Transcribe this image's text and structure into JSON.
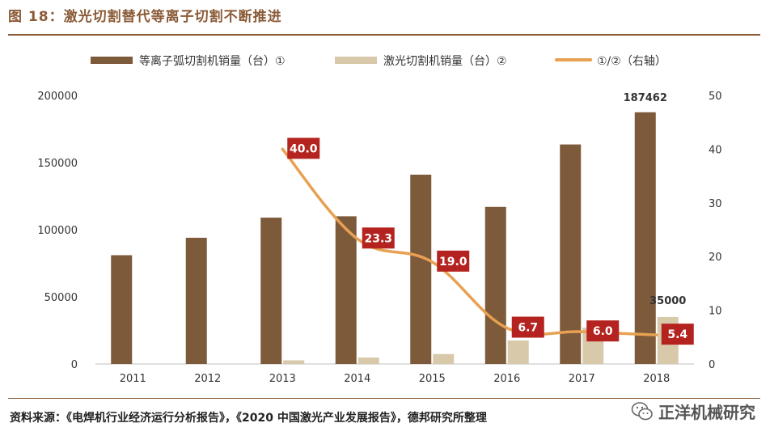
{
  "header": {
    "title": "图 18：激光切割替代等离子切割不断推进"
  },
  "footer": {
    "source": "资料来源：《电焊机行业经济运行分析报告》，《2020 中国激光产业发展报告》，德邦研究所整理",
    "watermark": "正洋机械研究"
  },
  "colors": {
    "bar1": "#7d5a3a",
    "bar2": "#d8c9ab",
    "line": "#e8a052",
    "label_bg": "#b4231f",
    "accent": "#8a5a37"
  },
  "chart_data": {
    "type": "bar+line",
    "title": "激光切割替代等离子切割不断推进",
    "categories": [
      "2011",
      "2012",
      "2013",
      "2014",
      "2015",
      "2016",
      "2017",
      "2018"
    ],
    "series": [
      {
        "name": "等离子弧切割机销量（台）①",
        "type": "bar",
        "axis": "left",
        "values": [
          81000,
          94000,
          109000,
          110000,
          141000,
          117000,
          163500,
          187462
        ]
      },
      {
        "name": "激光切割机销量（台）②",
        "type": "bar",
        "axis": "left",
        "values": [
          0,
          0,
          2700,
          4800,
          7400,
          17500,
          27000,
          35000
        ]
      },
      {
        "name": "①/②（右轴）",
        "type": "line",
        "axis": "right",
        "x": [
          "2013",
          "2014",
          "2015",
          "2016",
          "2017",
          "2018"
        ],
        "values": [
          40.0,
          23.3,
          19.0,
          6.7,
          6.0,
          5.4
        ],
        "labels": [
          "40.0",
          "23.3",
          "19.0",
          "6.7",
          "6.0",
          "5.4"
        ]
      }
    ],
    "y_left": {
      "lim": [
        0,
        200000
      ],
      "ticks": [
        "0",
        "50000",
        "100000",
        "150000",
        "200000"
      ]
    },
    "y_right": {
      "lim": [
        0,
        50
      ],
      "ticks": [
        "0",
        "10",
        "20",
        "30",
        "40",
        "50"
      ]
    },
    "annotations": [
      {
        "category": "2018",
        "series": 0,
        "text": "187462"
      },
      {
        "category": "2018",
        "series": 1,
        "text": "35000"
      }
    ],
    "legend": {
      "position": "top"
    }
  }
}
